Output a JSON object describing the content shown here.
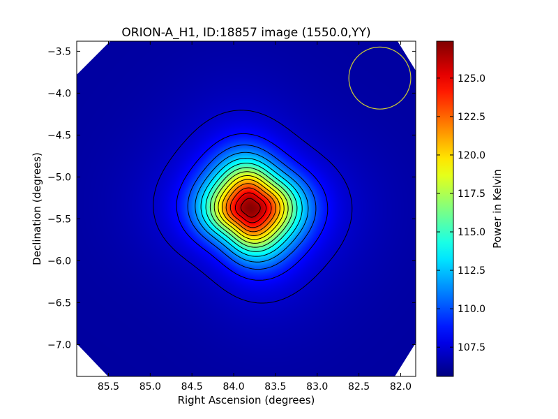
{
  "chart_data": {
    "type": "heatmap",
    "title": "ORION-A_H1, ID:18857 image (1550.0,YY)",
    "xlabel": "Right Ascension (degrees)",
    "ylabel": "Declination (degrees)",
    "colorbar_label": "Power in Kelvin",
    "colormap": "jet",
    "xlim": [
      85.88,
      81.82
    ],
    "ylim": [
      -7.38,
      -3.38
    ],
    "x_ticks": [
      85.5,
      85.0,
      84.5,
      84.0,
      83.5,
      83.0,
      82.5,
      82.0
    ],
    "x_tick_labels": [
      "85.5",
      "85.0",
      "84.5",
      "84.0",
      "83.5",
      "83.0",
      "82.5",
      "82.0"
    ],
    "y_ticks": [
      -3.5,
      -4.0,
      -4.5,
      -5.0,
      -5.5,
      -6.0,
      -6.5,
      -7.0
    ],
    "y_tick_labels": [
      "−3.5",
      "−4.0",
      "−4.5",
      "−5.0",
      "−5.5",
      "−6.0",
      "−6.5",
      "−7.0"
    ],
    "colorbar_range": [
      105.6,
      127.4
    ],
    "colorbar_ticks": [
      107.5,
      110.0,
      112.5,
      115.0,
      117.5,
      120.0,
      122.5,
      125.0
    ],
    "colorbar_tick_labels": [
      "107.5",
      "110.0",
      "112.5",
      "115.0",
      "117.5",
      "120.0",
      "122.5",
      "125.0"
    ],
    "peak": {
      "ra": 83.8,
      "dec": -5.37,
      "value": 127.2
    },
    "background_level": 106.3,
    "contour_levels": [
      107.2,
      108.5,
      110.0,
      111.5,
      113.0,
      114.5,
      116.0,
      117.5,
      119.0,
      120.5,
      122.0,
      123.5,
      125.0,
      126.3
    ],
    "beam_circle": {
      "ra": 82.25,
      "dec": -3.82,
      "radius_deg": 0.37,
      "color": "#cccc33"
    },
    "grid": false
  }
}
